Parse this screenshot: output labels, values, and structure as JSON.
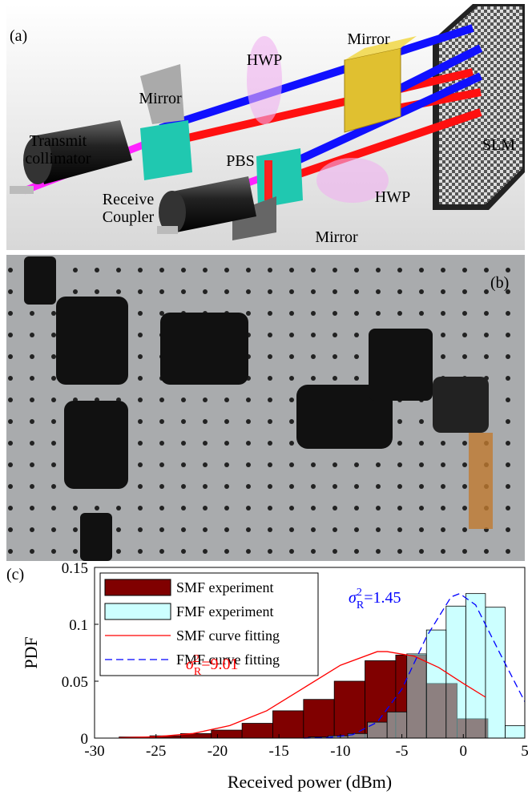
{
  "panel_a": {
    "label": "(a)",
    "annotations": [
      "Mirror",
      "HWP",
      "Mirror",
      "Transmit collimator",
      "PBS",
      "SLM",
      "Receive Coupler",
      "HWP",
      "Mirror"
    ]
  },
  "panel_b": {
    "label": "(b)"
  },
  "chart_data": {
    "type": "histogram",
    "label": "(c)",
    "xlabel": "Received power (dBm)",
    "ylabel": "PDF",
    "xlim": [
      -30,
      5
    ],
    "xticks": [
      -30,
      -25,
      -20,
      -15,
      -10,
      -5,
      0,
      5
    ],
    "ylim": [
      0,
      0.15
    ],
    "yticks": [
      0,
      0.05,
      0.1,
      0.15
    ],
    "legend": "upper left",
    "series": [
      {
        "name": "SMF experiment",
        "color": "#800000",
        "bins": [
          -28,
          -25.5,
          -23,
          -20.5,
          -18,
          -15.5,
          -13,
          -10.5,
          -8,
          -5.5,
          -3,
          -0.5,
          2
        ],
        "values": [
          0.001,
          0.002,
          0.004,
          0.007,
          0.013,
          0.024,
          0.034,
          0.05,
          0.068,
          0.073,
          0.048,
          0.017
        ]
      },
      {
        "name": "FMF experiment",
        "color": "#99ffff",
        "fill_opacity": 0.5,
        "bins": [
          -12.6,
          -11,
          -9.4,
          -7.8,
          -6.2,
          -4.6,
          -3,
          -1.4,
          0.2,
          1.8,
          3.4,
          5
        ],
        "values": [
          0.001,
          0.002,
          0.004,
          0.014,
          0.023,
          0.074,
          0.095,
          0.116,
          0.127,
          0.115,
          0.011
        ]
      },
      {
        "name": "SMF curve fitting",
        "type": "line",
        "color": "#ff0000",
        "x": [
          -28,
          -25,
          -22,
          -19,
          -16,
          -13,
          -10,
          -7,
          -6.2,
          -4,
          -2,
          0,
          1.8
        ],
        "values": [
          0.0003,
          0.0012,
          0.004,
          0.011,
          0.024,
          0.044,
          0.064,
          0.076,
          0.076,
          0.072,
          0.062,
          0.048,
          0.036
        ]
      },
      {
        "name": "FMF curve fitting",
        "type": "line",
        "color": "#0000ff",
        "dashed": true,
        "x": [
          -13,
          -11,
          -9,
          -7,
          -5,
          -3,
          -1,
          -0.3,
          1,
          3,
          5
        ],
        "values": [
          0,
          0.0005,
          0.003,
          0.014,
          0.043,
          0.089,
          0.124,
          0.127,
          0.117,
          0.074,
          0.032
        ]
      }
    ],
    "annotations": [
      {
        "symbol": "σ",
        "sup": "2",
        "sub": "R",
        "text": "=9.01",
        "color": "#ff0000"
      },
      {
        "symbol": "σ",
        "sup": "2",
        "sub": "R",
        "text": "=1.45",
        "color": "#0000ff"
      }
    ]
  }
}
